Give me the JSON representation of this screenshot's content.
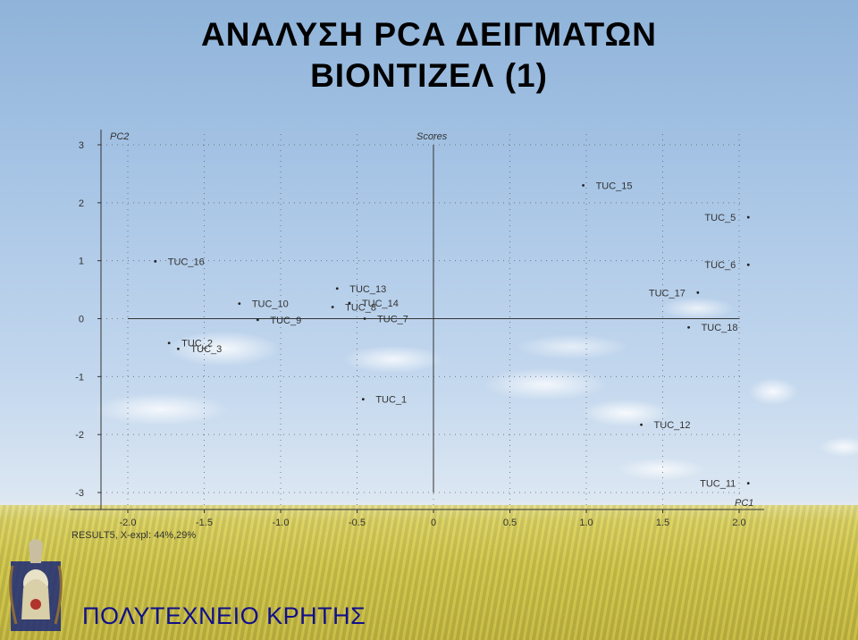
{
  "slide": {
    "title_line1": "ΑΝΑΛΥΣΗ PCA ΔΕΙΓΜΑΤΩΝ",
    "title_line2": "ΒΙΟΝΤΙΖΕΛ (1)",
    "footer": "ΠΟΛΥΤΕΧΝΕΙΟ ΚΡΗΤΗΣ",
    "footer_color": "#10108a"
  },
  "chart_data": {
    "type": "scatter",
    "title": "Scores",
    "xlabel": "PC1",
    "ylabel": "PC2",
    "note": "RESULT5, X-expl: 44%,29%",
    "xlim": [
      -2.2,
      2.2
    ],
    "ylim": [
      -3.2,
      3.1
    ],
    "xticks": [
      "-2.0",
      "-1.5",
      "-1.0",
      "-0.5",
      "0",
      "0.5",
      "1.0",
      "1.5",
      "2.0"
    ],
    "xtick_values": [
      -2.0,
      -1.5,
      -1.0,
      -0.5,
      0,
      0.5,
      1.0,
      1.5,
      2.0
    ],
    "yticks": [
      "3",
      "2",
      "1",
      "0",
      "-1",
      "-2",
      "-3"
    ],
    "ytick_values": [
      3,
      2,
      1,
      0,
      -1,
      -2,
      -3
    ],
    "grid": true,
    "points": [
      {
        "label": "TUC_15",
        "x": 0.98,
        "y": 2.3
      },
      {
        "label": "TUC_5",
        "x": 2.06,
        "y": 1.75
      },
      {
        "label": "TUC_16",
        "x": -1.82,
        "y": 0.99
      },
      {
        "label": "TUC_6",
        "x": 2.06,
        "y": 0.93
      },
      {
        "label": "TUC_13",
        "x": -0.63,
        "y": 0.52
      },
      {
        "label": "TUC_17",
        "x": 1.73,
        "y": 0.45
      },
      {
        "label": "TUC_10",
        "x": -1.27,
        "y": 0.26
      },
      {
        "label": "TUC_14",
        "x": -0.55,
        "y": 0.27
      },
      {
        "label": "TUC_8",
        "x": -0.66,
        "y": 0.2
      },
      {
        "label": "TUC_9",
        "x": -1.15,
        "y": -0.02
      },
      {
        "label": "TUC_7",
        "x": -0.45,
        "y": 0.0
      },
      {
        "label": "TUC_18",
        "x": 1.67,
        "y": -0.15
      },
      {
        "label": "TUC_2",
        "x": -1.73,
        "y": -0.42
      },
      {
        "label": "TUC_3",
        "x": -1.67,
        "y": -0.52
      },
      {
        "label": "TUC_1",
        "x": -0.46,
        "y": -1.39
      },
      {
        "label": "TUC_12",
        "x": 1.36,
        "y": -1.83
      },
      {
        "label": "TUC_11",
        "x": 2.06,
        "y": -2.84
      }
    ]
  }
}
